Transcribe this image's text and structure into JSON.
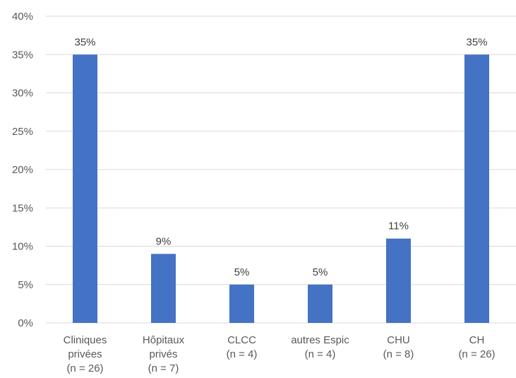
{
  "chart_data": {
    "type": "bar",
    "categories": [
      [
        "Cliniques",
        "privées",
        "(n = 26)"
      ],
      [
        "Hôpitaux",
        "privés",
        "(n = 7)"
      ],
      [
        "CLCC",
        "(n = 4)"
      ],
      [
        "autres Espic",
        "(n = 4)"
      ],
      [
        "CHU",
        "(n = 8)"
      ],
      [
        "CH",
        "(n = 26)"
      ]
    ],
    "values": [
      35,
      9,
      5,
      5,
      11,
      35
    ],
    "data_labels": [
      "35%",
      "9%",
      "5%",
      "5%",
      "11%",
      "35%"
    ],
    "y_ticks": [
      "0%",
      "5%",
      "10%",
      "15%",
      "20%",
      "25%",
      "30%",
      "35%",
      "40%"
    ],
    "ylim": [
      0,
      40
    ],
    "y_unit": "%",
    "grid": true,
    "legend": "none",
    "bar_color": "#4472c4",
    "grid_color": "#d9d9d9"
  }
}
